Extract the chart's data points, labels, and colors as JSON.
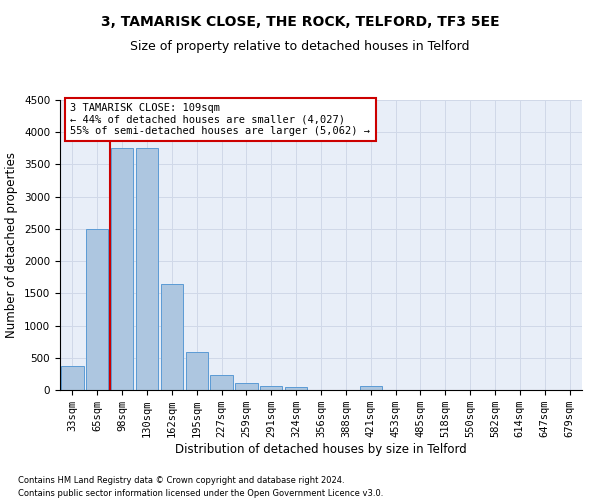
{
  "title": "3, TAMARISK CLOSE, THE ROCK, TELFORD, TF3 5EE",
  "subtitle": "Size of property relative to detached houses in Telford",
  "xlabel": "Distribution of detached houses by size in Telford",
  "ylabel": "Number of detached properties",
  "footnote1": "Contains HM Land Registry data © Crown copyright and database right 2024.",
  "footnote2": "Contains public sector information licensed under the Open Government Licence v3.0.",
  "categories": [
    "33sqm",
    "65sqm",
    "98sqm",
    "130sqm",
    "162sqm",
    "195sqm",
    "227sqm",
    "259sqm",
    "291sqm",
    "324sqm",
    "356sqm",
    "388sqm",
    "421sqm",
    "453sqm",
    "485sqm",
    "518sqm",
    "550sqm",
    "582sqm",
    "614sqm",
    "647sqm",
    "679sqm"
  ],
  "bar_values": [
    370,
    2500,
    3750,
    3750,
    1650,
    590,
    230,
    105,
    60,
    40,
    0,
    0,
    60,
    0,
    0,
    0,
    0,
    0,
    0,
    0,
    0
  ],
  "bar_color": "#adc6e0",
  "bar_edge_color": "#5b9bd5",
  "grid_color": "#d0d8e8",
  "background_color": "#e8eef8",
  "ylim": [
    0,
    4500
  ],
  "yticks": [
    0,
    500,
    1000,
    1500,
    2000,
    2500,
    3000,
    3500,
    4000,
    4500
  ],
  "vline_color": "#cc0000",
  "vline_position": 1.5,
  "annotation_text": "3 TAMARISK CLOSE: 109sqm\n← 44% of detached houses are smaller (4,027)\n55% of semi-detached houses are larger (5,062) →",
  "annotation_box_color": "#ffffff",
  "annotation_box_edge": "#cc0000",
  "title_fontsize": 10,
  "subtitle_fontsize": 9,
  "axis_label_fontsize": 8.5,
  "tick_fontsize": 7.5,
  "annotation_fontsize": 7.5,
  "footnote_fontsize": 6
}
